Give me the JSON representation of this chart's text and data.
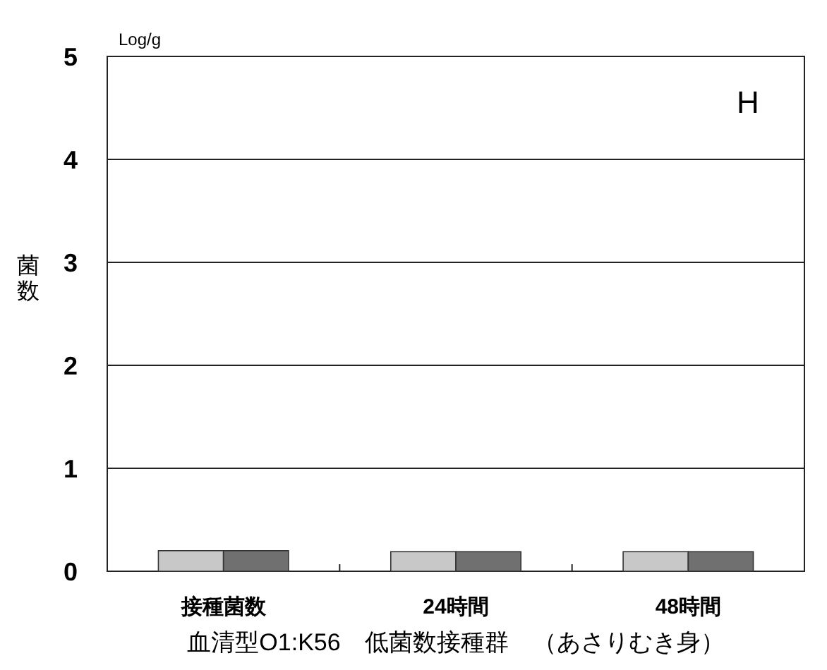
{
  "chart_data": {
    "type": "bar",
    "categories": [
      "接種菌数",
      "24時間",
      "48時間"
    ],
    "series": [
      {
        "color": "#c8c8c8",
        "values": [
          0.2,
          0.19,
          0.19
        ]
      },
      {
        "color": "#707070",
        "values": [
          0.2,
          0.19,
          0.19
        ]
      }
    ],
    "ylim": [
      0,
      5
    ],
    "yticks": [
      0,
      1,
      2,
      3,
      4,
      5
    ],
    "grid": "y",
    "ylabel": "菌数",
    "xlabel": "血清型O1:K56　低菌数接種群　（あさりむき身）",
    "annotations": [
      "Log/g",
      "H"
    ]
  }
}
